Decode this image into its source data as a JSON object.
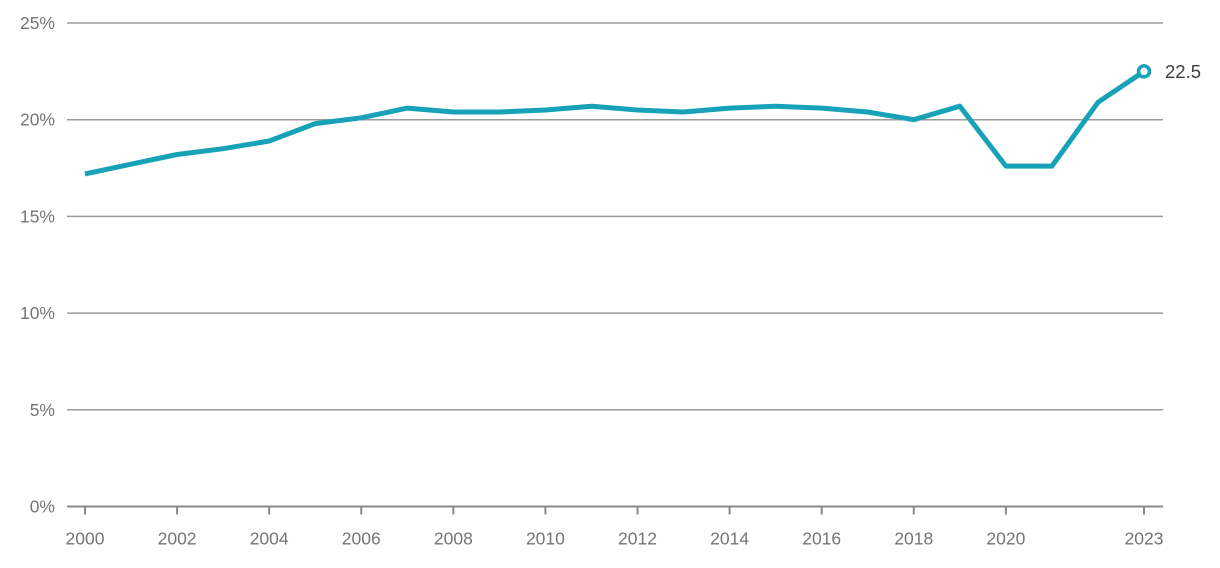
{
  "chart_data": {
    "type": "line",
    "title": "",
    "xlabel": "",
    "ylabel": "",
    "x": [
      2000,
      2001,
      2002,
      2003,
      2004,
      2005,
      2006,
      2007,
      2008,
      2009,
      2010,
      2011,
      2012,
      2013,
      2014,
      2015,
      2016,
      2017,
      2018,
      2019,
      2020,
      2021,
      2022,
      2023
    ],
    "series": [
      {
        "name": "share-percent",
        "values": [
          17.2,
          17.7,
          18.2,
          18.5,
          18.9,
          19.8,
          20.1,
          20.6,
          20.4,
          20.4,
          20.5,
          20.7,
          20.5,
          20.4,
          20.6,
          20.7,
          20.6,
          20.4,
          20.0,
          20.7,
          17.6,
          17.6,
          20.9,
          22.5
        ]
      }
    ],
    "xlim": [
      2000,
      2023
    ],
    "ylim": [
      0,
      25
    ],
    "x_ticks": [
      2000,
      2002,
      2004,
      2006,
      2008,
      2010,
      2012,
      2014,
      2016,
      2018,
      2020,
      2023
    ],
    "x_tick_labels": [
      "2000",
      "2002",
      "2004",
      "2006",
      "2008",
      "2010",
      "2012",
      "2014",
      "2016",
      "2018",
      "2020",
      "2023"
    ],
    "y_ticks": [
      0,
      5,
      10,
      15,
      20,
      25
    ],
    "y_tick_labels": [
      "0%",
      "5%",
      "10%",
      "15%",
      "20%",
      "25%"
    ],
    "grid": "horizontal",
    "legend": "none",
    "endpoint_label": "22.5",
    "endpoint_marker": "open-circle",
    "colors": {
      "line": "#17a2b8",
      "gridline": "#9b9b9b",
      "axis_line": "#8a8a8a",
      "tick_text": "#757575",
      "endpoint_text": "#3d3d3d",
      "marker_fill": "#ffffff",
      "background": "#ffffff"
    }
  }
}
